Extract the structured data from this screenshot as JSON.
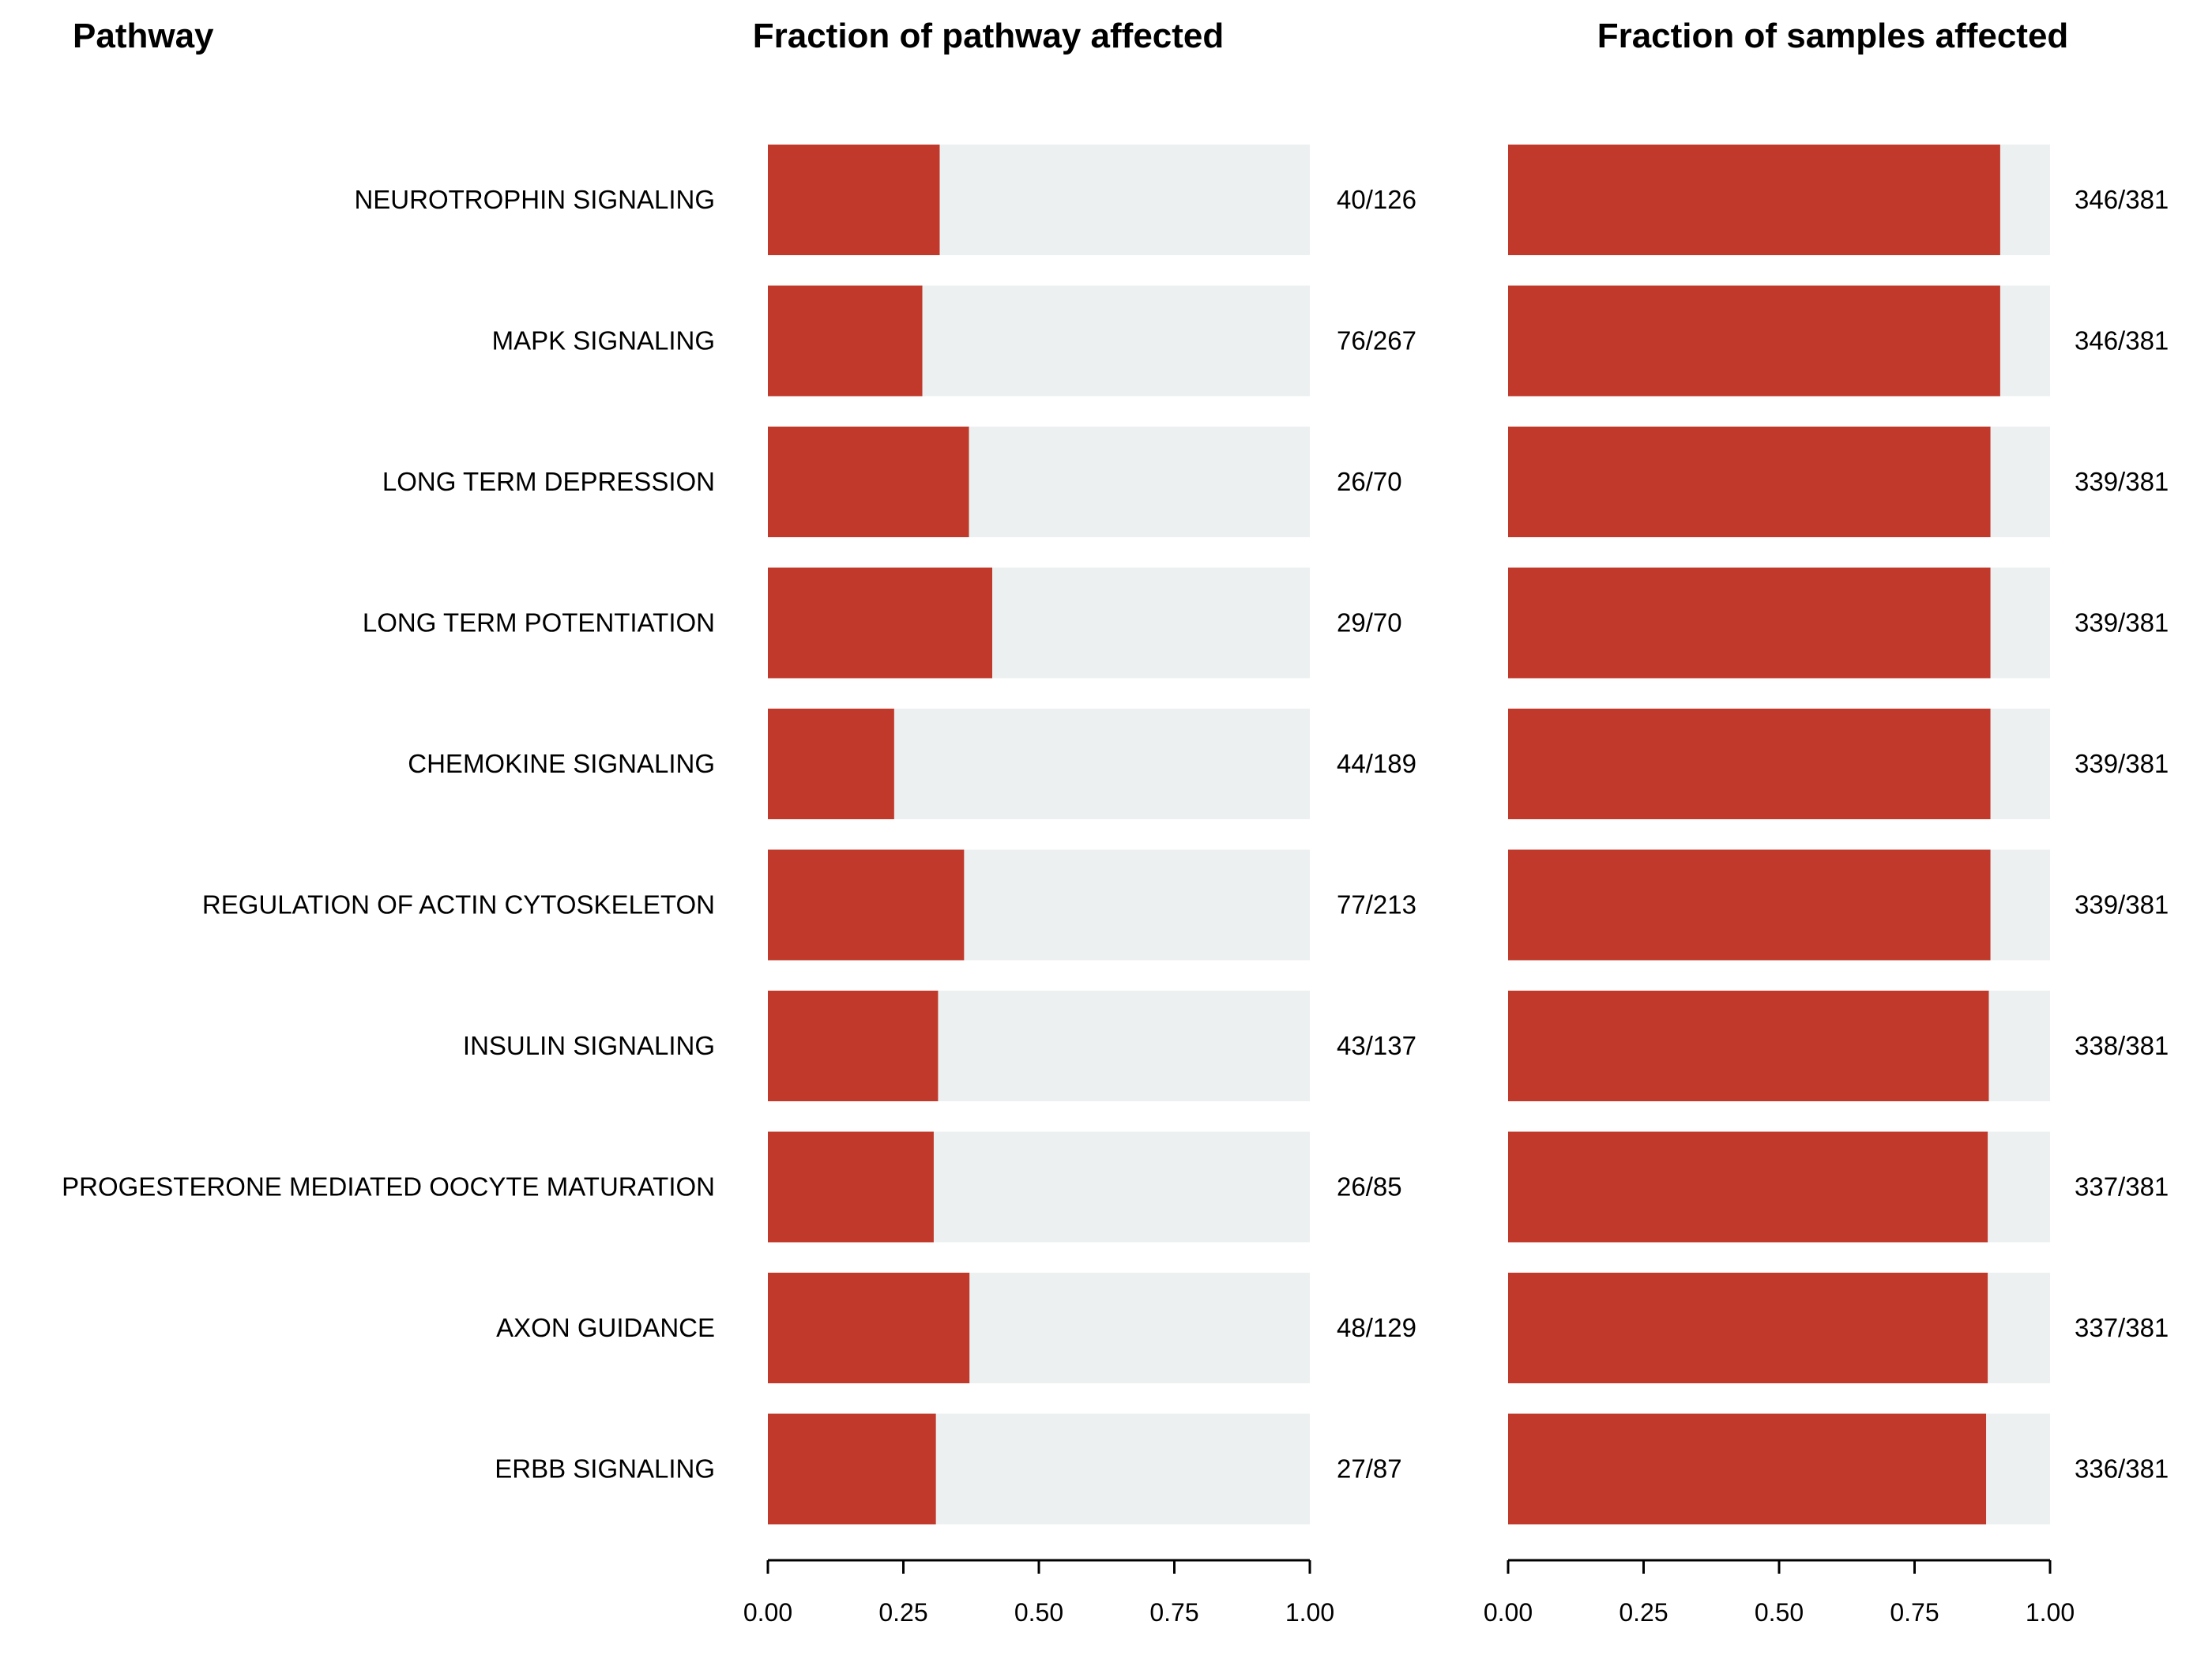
{
  "headers": {
    "pathway": "Pathway",
    "fraction_pathway": "Fraction of pathway affected",
    "fraction_samples": "Fraction of samples affected"
  },
  "colors": {
    "bar_fill": "#c0392b",
    "bar_background": "#ecf0f1",
    "text": "#000000"
  },
  "chart_data": [
    {
      "type": "bar",
      "orientation": "horizontal",
      "title": "Fraction of pathway affected",
      "xlim": [
        0,
        1
      ],
      "ticks": [
        "0.00",
        "0.25",
        "0.50",
        "0.75",
        "1.00"
      ],
      "tick_values": [
        0,
        0.25,
        0.5,
        0.75,
        1
      ],
      "grid": false,
      "categories": [
        "NEUROTROPHIN SIGNALING",
        "MAPK SIGNALING",
        "LONG TERM DEPRESSION",
        "LONG TERM POTENTIATION",
        "CHEMOKINE SIGNALING",
        "REGULATION OF ACTIN CYTOSKELETON",
        "INSULIN SIGNALING",
        "PROGESTERONE MEDIATED OOCYTE MATURATION",
        "AXON GUIDANCE",
        "ERBB SIGNALING"
      ],
      "values": [
        0.317,
        0.285,
        0.371,
        0.414,
        0.233,
        0.362,
        0.314,
        0.306,
        0.372,
        0.31
      ],
      "labels": [
        "40/126",
        "76/267",
        "26/70",
        "29/70",
        "44/189",
        "77/213",
        "43/137",
        "26/85",
        "48/129",
        "27/87"
      ]
    },
    {
      "type": "bar",
      "orientation": "horizontal",
      "title": "Fraction of samples affected",
      "xlim": [
        0,
        1
      ],
      "ticks": [
        "0.00",
        "0.25",
        "0.50",
        "0.75",
        "1.00"
      ],
      "tick_values": [
        0,
        0.25,
        0.5,
        0.75,
        1
      ],
      "grid": false,
      "categories": [
        "NEUROTROPHIN SIGNALING",
        "MAPK SIGNALING",
        "LONG TERM DEPRESSION",
        "LONG TERM POTENTIATION",
        "CHEMOKINE SIGNALING",
        "REGULATION OF ACTIN CYTOSKELETON",
        "INSULIN SIGNALING",
        "PROGESTERONE MEDIATED OOCYTE MATURATION",
        "AXON GUIDANCE",
        "ERBB SIGNALING"
      ],
      "values": [
        0.908,
        0.908,
        0.89,
        0.89,
        0.89,
        0.89,
        0.887,
        0.885,
        0.885,
        0.882
      ],
      "labels": [
        "346/381",
        "346/381",
        "339/381",
        "339/381",
        "339/381",
        "339/381",
        "338/381",
        "337/381",
        "337/381",
        "336/381"
      ]
    }
  ]
}
